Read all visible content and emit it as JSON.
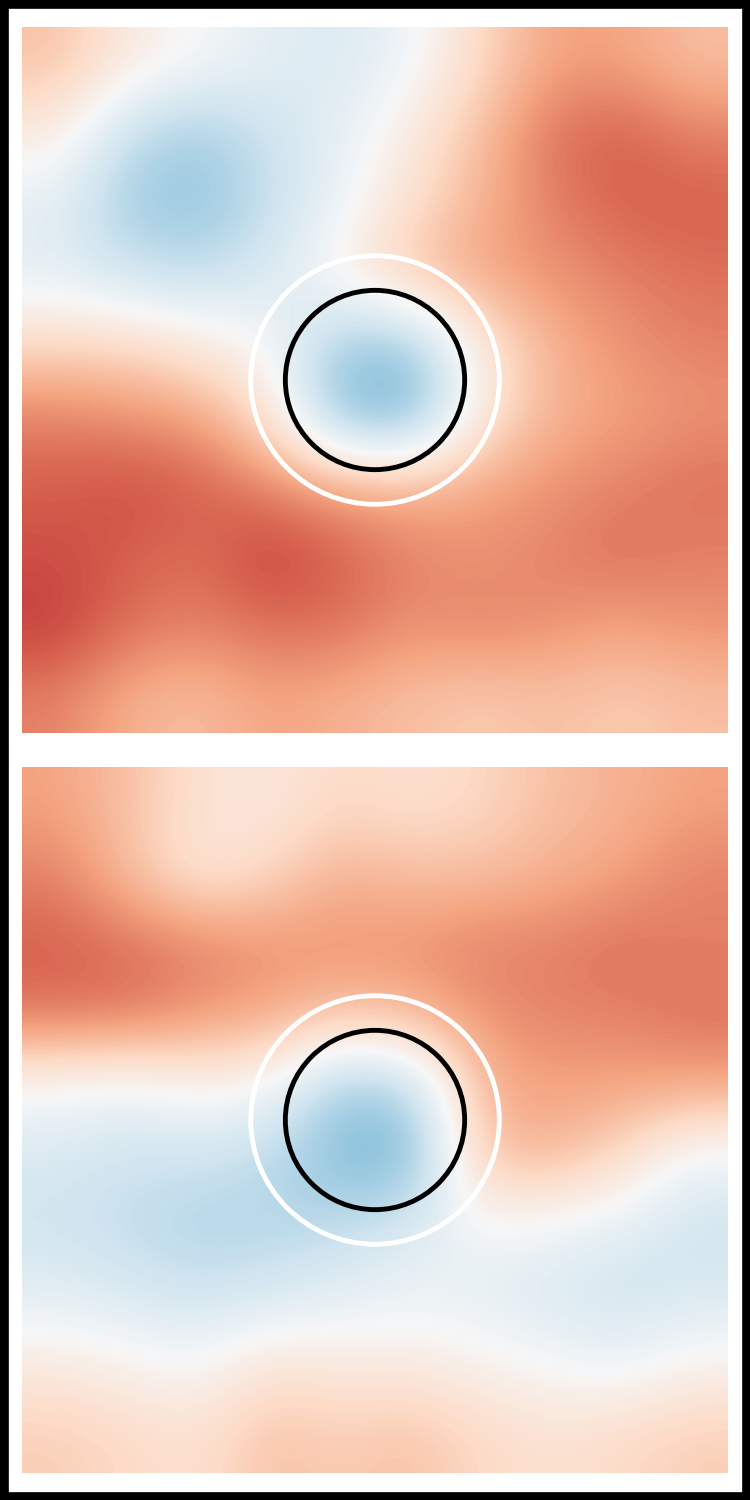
{
  "chart_data": [
    {
      "type": "heatmap",
      "tick_labels": false,
      "xlim": [
        0,
        1
      ],
      "ylim": [
        0,
        1
      ],
      "color_range": [
        -1,
        1
      ],
      "cells": [
        [
          0.3,
          0.1,
          0.0,
          -0.1,
          -0.15,
          -0.05,
          0.2,
          0.4,
          0.4,
          0.3
        ],
        [
          0.1,
          -0.25,
          -0.35,
          -0.2,
          -0.1,
          0.1,
          0.3,
          0.55,
          0.6,
          0.5
        ],
        [
          -0.1,
          -0.35,
          -0.4,
          -0.25,
          -0.05,
          0.15,
          0.35,
          0.5,
          0.6,
          0.6
        ],
        [
          -0.1,
          -0.2,
          -0.25,
          -0.15,
          0.05,
          0.3,
          0.4,
          0.45,
          0.5,
          0.55
        ],
        [
          0.2,
          0.2,
          0.1,
          0.0,
          -0.35,
          -0.4,
          0.1,
          0.35,
          0.45,
          0.5
        ],
        [
          0.5,
          0.45,
          0.4,
          0.15,
          -0.45,
          -0.5,
          0.1,
          0.35,
          0.4,
          0.45
        ],
        [
          0.6,
          0.65,
          0.6,
          0.5,
          0.4,
          0.35,
          0.4,
          0.45,
          0.5,
          0.55
        ],
        [
          0.65,
          0.6,
          0.55,
          0.7,
          0.6,
          0.5,
          0.45,
          0.5,
          0.55,
          0.5
        ],
        [
          0.7,
          0.55,
          0.5,
          0.55,
          0.55,
          0.45,
          0.5,
          0.45,
          0.4,
          0.45
        ],
        [
          0.5,
          0.35,
          0.3,
          0.4,
          0.35,
          0.3,
          0.25,
          0.3,
          0.25,
          0.3
        ]
      ],
      "circles": [
        {
          "center": [
            0.5,
            0.5
          ],
          "radius": 0.176,
          "color": "white"
        },
        {
          "center": [
            0.5,
            0.5
          ],
          "radius": 0.127,
          "color": "black"
        }
      ]
    },
    {
      "type": "heatmap",
      "tick_labels": false,
      "xlim": [
        0,
        1
      ],
      "ylim": [
        0,
        1
      ],
      "color_range": [
        -1,
        1
      ],
      "cells": [
        [
          0.4,
          0.3,
          0.15,
          0.1,
          0.2,
          0.15,
          0.2,
          0.3,
          0.35,
          0.4
        ],
        [
          0.5,
          0.3,
          0.1,
          0.2,
          0.35,
          0.3,
          0.3,
          0.35,
          0.4,
          0.5
        ],
        [
          0.6,
          0.55,
          0.5,
          0.45,
          0.45,
          0.45,
          0.5,
          0.5,
          0.55,
          0.5
        ],
        [
          0.55,
          0.55,
          0.45,
          0.4,
          0.3,
          0.35,
          0.45,
          0.5,
          0.5,
          0.55
        ],
        [
          0.0,
          -0.05,
          0.05,
          0.0,
          -0.35,
          -0.3,
          0.35,
          0.4,
          0.4,
          0.4
        ],
        [
          -0.15,
          -0.2,
          -0.2,
          -0.25,
          -0.45,
          -0.5,
          0.3,
          0.35,
          0.2,
          -0.05
        ],
        [
          -0.2,
          -0.25,
          -0.3,
          -0.3,
          -0.25,
          -0.15,
          0.0,
          -0.05,
          -0.1,
          -0.2
        ],
        [
          -0.1,
          -0.15,
          -0.2,
          -0.15,
          -0.1,
          -0.05,
          -0.1,
          -0.15,
          -0.2,
          -0.15
        ],
        [
          0.1,
          0.05,
          0.0,
          0.15,
          0.1,
          0.1,
          0.05,
          0.0,
          -0.05,
          0.05
        ],
        [
          0.25,
          0.2,
          0.15,
          0.3,
          0.25,
          0.3,
          0.2,
          0.15,
          0.2,
          0.25
        ]
      ],
      "circles": [
        {
          "center": [
            0.5,
            0.5
          ],
          "radius": 0.176,
          "color": "white"
        },
        {
          "center": [
            0.5,
            0.5
          ],
          "radius": 0.127,
          "color": "black"
        }
      ]
    }
  ]
}
